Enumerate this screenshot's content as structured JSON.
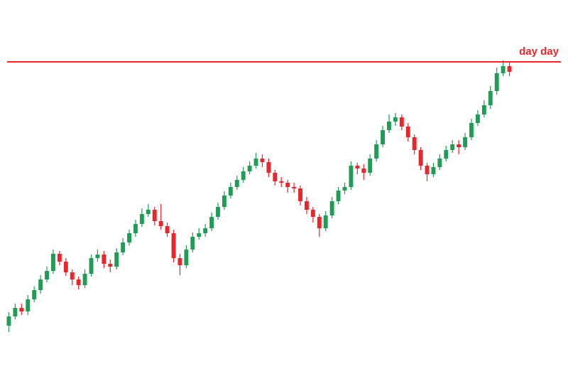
{
  "chart_data": {
    "type": "candlestick",
    "up_color": "#1f9d55",
    "down_color": "#e8262c",
    "ylim": [
      0,
      533
    ],
    "categories": [
      null,
      null,
      null,
      null,
      null,
      null,
      null,
      null,
      null,
      null,
      null,
      null,
      null,
      null,
      null,
      null,
      null,
      null,
      null,
      null,
      null,
      null,
      null,
      null,
      null,
      null,
      null,
      null,
      null,
      null,
      null,
      null,
      null,
      null,
      null,
      null,
      null,
      null,
      null,
      null,
      null,
      null,
      null,
      null,
      null,
      null,
      null,
      null,
      null,
      null,
      null,
      null,
      null,
      null,
      null,
      null,
      null,
      null,
      null,
      null,
      null,
      null,
      null,
      null,
      null,
      null,
      null,
      null,
      null,
      null,
      null,
      null,
      null,
      null,
      null,
      null,
      null,
      null,
      null,
      null
    ],
    "open": [
      75,
      88,
      100,
      95,
      112,
      125,
      140,
      152,
      176,
      165,
      150,
      140,
      132,
      148,
      170,
      175,
      162,
      158,
      178,
      192,
      205,
      218,
      232,
      238,
      222,
      215,
      205,
      170,
      160,
      182,
      200,
      205,
      212,
      228,
      242,
      258,
      270,
      280,
      292,
      300,
      310,
      305,
      290,
      278,
      276,
      270,
      268,
      250,
      238,
      228,
      212,
      230,
      250,
      265,
      270,
      300,
      296,
      290,
      310,
      330,
      350,
      362,
      368,
      355,
      340,
      322,
      300,
      288,
      298,
      310,
      322,
      330,
      326,
      340,
      360,
      372,
      385,
      405,
      430,
      440
    ],
    "high": [
      94,
      106,
      106,
      118,
      130,
      146,
      158,
      182,
      180,
      170,
      154,
      144,
      154,
      175,
      182,
      180,
      168,
      184,
      198,
      210,
      224,
      240,
      246,
      242,
      246,
      220,
      210,
      176,
      188,
      206,
      212,
      218,
      234,
      248,
      264,
      276,
      286,
      298,
      306,
      318,
      316,
      310,
      294,
      284,
      280,
      276,
      272,
      256,
      242,
      232,
      236,
      256,
      270,
      276,
      306,
      304,
      302,
      316,
      336,
      356,
      372,
      374,
      372,
      360,
      344,
      326,
      304,
      304,
      316,
      328,
      336,
      336,
      346,
      366,
      378,
      392,
      412,
      438,
      448,
      446
    ],
    "low": [
      66,
      84,
      90,
      90,
      108,
      120,
      136,
      148,
      160,
      145,
      132,
      126,
      128,
      144,
      165,
      156,
      150,
      154,
      174,
      188,
      200,
      214,
      228,
      216,
      210,
      200,
      164,
      146,
      156,
      178,
      196,
      200,
      208,
      224,
      238,
      254,
      266,
      276,
      288,
      296,
      298,
      284,
      272,
      270,
      262,
      262,
      244,
      232,
      220,
      200,
      208,
      226,
      246,
      260,
      266,
      288,
      280,
      286,
      306,
      326,
      346,
      356,
      350,
      334,
      316,
      294,
      278,
      284,
      294,
      306,
      318,
      316,
      322,
      336,
      356,
      368,
      380,
      400,
      426,
      426
    ],
    "close": [
      88,
      100,
      95,
      112,
      125,
      140,
      152,
      176,
      165,
      150,
      140,
      132,
      148,
      170,
      175,
      162,
      158,
      178,
      192,
      205,
      218,
      232,
      238,
      222,
      215,
      205,
      170,
      160,
      182,
      200,
      205,
      212,
      228,
      242,
      258,
      270,
      280,
      292,
      300,
      310,
      305,
      290,
      278,
      276,
      270,
      268,
      250,
      238,
      228,
      212,
      230,
      250,
      265,
      270,
      300,
      296,
      290,
      310,
      330,
      350,
      362,
      368,
      355,
      340,
      322,
      300,
      288,
      298,
      310,
      322,
      330,
      326,
      340,
      360,
      372,
      385,
      405,
      430,
      440,
      432
    ],
    "resistance": {
      "label": "day day",
      "value": 446,
      "color": "#e8262c"
    }
  }
}
